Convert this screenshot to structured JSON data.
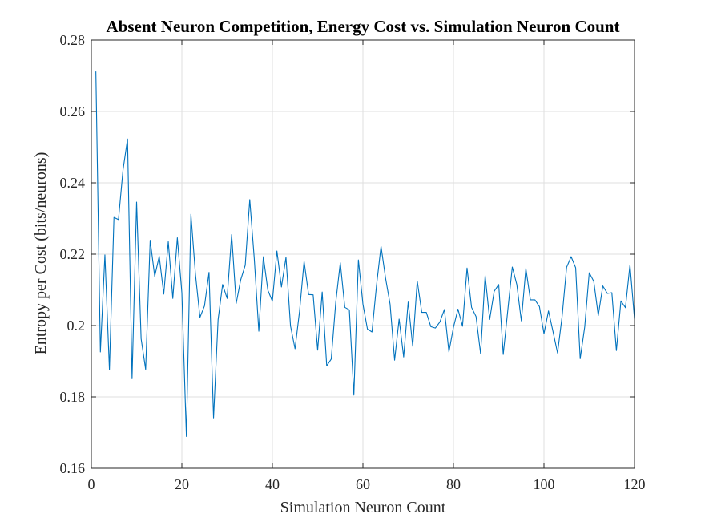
{
  "chart_data": {
    "type": "line",
    "title": "Absent Neuron Competition, Energy Cost vs. Simulation Neuron Count",
    "xlabel": "Simulation Neuron Count",
    "ylabel": "Entropy per Cost (bits/neurons)",
    "xlim": [
      0,
      120
    ],
    "ylim": [
      0.16,
      0.28
    ],
    "xticks": [
      0,
      20,
      40,
      60,
      80,
      100,
      120
    ],
    "xtick_labels": [
      "0",
      "20",
      "40",
      "60",
      "80",
      "100",
      "120"
    ],
    "yticks": [
      0.16,
      0.18,
      0.2,
      0.22,
      0.24,
      0.26,
      0.28
    ],
    "ytick_labels": [
      "0.16",
      "0.18",
      "0.2",
      "0.22",
      "0.24",
      "0.26",
      "0.28"
    ],
    "grid": true,
    "line_color": "#0072BD",
    "series": [
      {
        "x": [
          1,
          2,
          3,
          4,
          5,
          6,
          7,
          8,
          9,
          10,
          11,
          12,
          13,
          14,
          15,
          16,
          17,
          18,
          19,
          20,
          21,
          22,
          23,
          24,
          25,
          26,
          27,
          28,
          29,
          30,
          31,
          32,
          33,
          34,
          35,
          36,
          37,
          38,
          39,
          40,
          41,
          42,
          43,
          44,
          45,
          46,
          47,
          48,
          49,
          50,
          51,
          52,
          53,
          54,
          55,
          56,
          57,
          58,
          59,
          60,
          61,
          62,
          63,
          64,
          65,
          66,
          67,
          68,
          69,
          70,
          71,
          72,
          73,
          74,
          75,
          76,
          77,
          78,
          79,
          80,
          81,
          82,
          83,
          84,
          85,
          86,
          87,
          88,
          89,
          90,
          91,
          92,
          93,
          94,
          95,
          96,
          97,
          98,
          99,
          100,
          101,
          102,
          103,
          104,
          105,
          106,
          107,
          108,
          109,
          110,
          111,
          112,
          113,
          114,
          115,
          116,
          117,
          118,
          119,
          120
        ],
        "values": [
          0.2712,
          0.1926,
          0.2198,
          0.1876,
          0.2303,
          0.2297,
          0.2436,
          0.2523,
          0.1851,
          0.2346,
          0.1963,
          0.1877,
          0.2239,
          0.2138,
          0.2194,
          0.2088,
          0.2235,
          0.2076,
          0.2246,
          0.2092,
          0.1689,
          0.2312,
          0.2144,
          0.2023,
          0.2055,
          0.2149,
          0.1741,
          0.2016,
          0.2115,
          0.2076,
          0.2255,
          0.2062,
          0.2128,
          0.2169,
          0.2353,
          0.2187,
          0.1984,
          0.2193,
          0.2099,
          0.2068,
          0.2209,
          0.2108,
          0.2191,
          0.1999,
          0.1935,
          0.204,
          0.218,
          0.2087,
          0.2086,
          0.1931,
          0.2094,
          0.1887,
          0.1906,
          0.2065,
          0.2176,
          0.2051,
          0.2044,
          0.1805,
          0.2184,
          0.206,
          0.199,
          0.1982,
          0.2112,
          0.2222,
          0.2133,
          0.206,
          0.1903,
          0.2018,
          0.1912,
          0.2066,
          0.1942,
          0.2125,
          0.2037,
          0.2037,
          0.1997,
          0.1993,
          0.201,
          0.2045,
          0.1926,
          0.1995,
          0.2046,
          0.1998,
          0.2161,
          0.2051,
          0.2025,
          0.1921,
          0.214,
          0.2017,
          0.2096,
          0.2115,
          0.1919,
          0.2042,
          0.2164,
          0.2115,
          0.2013,
          0.216,
          0.2072,
          0.2072,
          0.2053,
          0.1977,
          0.2041,
          0.1983,
          0.1923,
          0.2025,
          0.2163,
          0.2193,
          0.2162,
          0.1907,
          0.1996,
          0.2148,
          0.2124,
          0.2028,
          0.2111,
          0.209,
          0.2092,
          0.193,
          0.2069,
          0.205,
          0.217,
          0.2018
        ]
      }
    ]
  }
}
